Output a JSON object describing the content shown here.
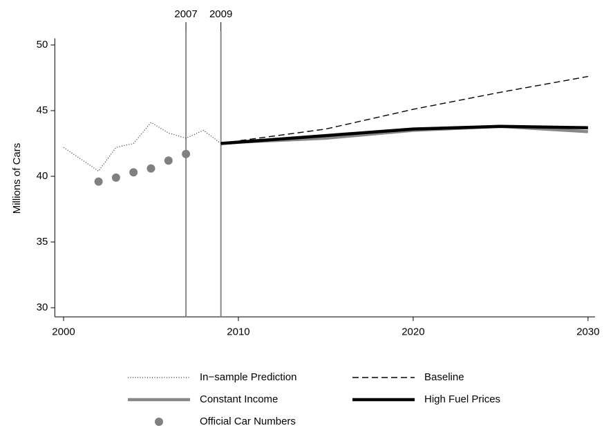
{
  "chart_data": {
    "type": "line",
    "ylabel": "Millions of Cars",
    "xlim": [
      1999.5,
      2030.4
    ],
    "ylim": [
      29.3,
      50.5
    ],
    "xticks": [
      2000,
      2010,
      2020,
      2030
    ],
    "yticks": [
      30,
      35,
      40,
      45,
      50
    ],
    "vlines": [
      2007,
      2009
    ],
    "vline_color": "#888888",
    "legend": "bottom",
    "series": [
      {
        "name": "In−sample Prediction",
        "color": "#222222",
        "style": "dotted",
        "x": [
          2000,
          2001,
          2002,
          2003,
          2004,
          2005,
          2006,
          2007,
          2008,
          2009
        ],
        "values": [
          42.2,
          41.3,
          40.4,
          42.2,
          42.5,
          44.1,
          43.3,
          42.9,
          43.5,
          42.5
        ]
      },
      {
        "name": "Baseline",
        "color": "#000000",
        "style": "dashed",
        "x": [
          2009,
          2010,
          2015,
          2020,
          2025,
          2030
        ],
        "values": [
          42.5,
          42.7,
          43.6,
          45.1,
          46.4,
          47.6
        ]
      },
      {
        "name": "Constant Income",
        "color": "#888888",
        "style": "thick",
        "x": [
          2009,
          2010,
          2015,
          2020,
          2025,
          2030
        ],
        "values": [
          42.5,
          42.6,
          42.9,
          43.5,
          43.8,
          43.4
        ]
      },
      {
        "name": "High Fuel Prices",
        "color": "#000000",
        "style": "thick",
        "x": [
          2009,
          2010,
          2015,
          2020,
          2025,
          2030
        ],
        "values": [
          42.5,
          42.6,
          43.1,
          43.6,
          43.8,
          43.7
        ]
      },
      {
        "name": "Official Car Numbers",
        "color": "#808080",
        "style": "markers",
        "x": [
          2002,
          2003,
          2004,
          2005,
          2006,
          2007
        ],
        "values": [
          39.6,
          39.9,
          40.3,
          40.6,
          41.2,
          41.7
        ]
      }
    ]
  }
}
